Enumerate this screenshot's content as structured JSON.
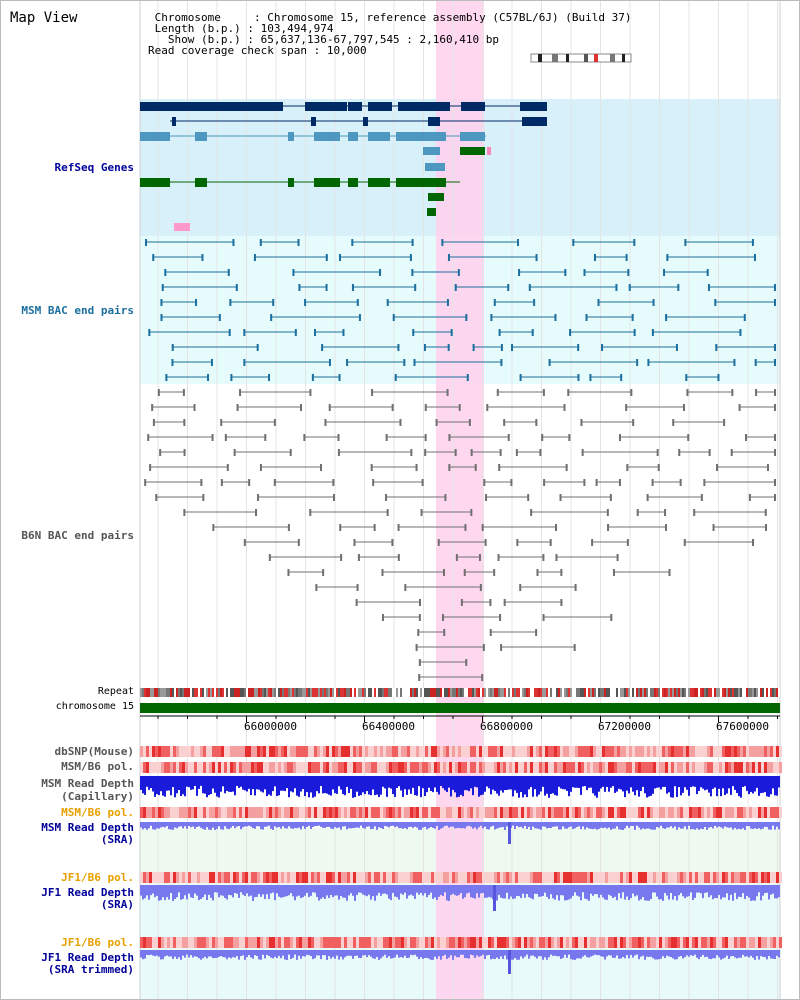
{
  "title": "Map View",
  "header": {
    "chromosome_label": "Chromosome",
    "chromosome_value": "Chromosome 15, reference assembly (C57BL/6J) (Build 37)",
    "length_label": "Length (b.p.)",
    "length_value": "103,494,974",
    "show_label": "Show (b.p.)",
    "show_value": "65,637,136-67,797,545 : 2,160,410 bp",
    "coverage_label": "Read coverage check span",
    "coverage_value": "10,000"
  },
  "tracks": {
    "refseq": "RefSeq Genes",
    "msm_bac": "MSM BAC end pairs",
    "b6n_bac": "B6N BAC end pairs",
    "repeat": "Repeat",
    "chromosome": "chromosome 15"
  },
  "axis_ticks": [
    "66000000",
    "66400000",
    "66800000",
    "67200000",
    "67600000"
  ],
  "lower_tracks": [
    {
      "label": "dbSNP(Mouse)",
      "color": "#555555"
    },
    {
      "label": "MSM/B6 pol.",
      "color": "#555555"
    },
    {
      "label": "MSM Read Depth",
      "color": "#555555"
    },
    {
      "label": "(Capillary)",
      "color": "#555555"
    },
    {
      "label": "MSM/B6 pol.",
      "color": "#e8a000"
    },
    {
      "label": "MSM Read Depth",
      "color": "#000099"
    },
    {
      "label": "(SRA)",
      "color": "#000099"
    },
    {
      "label": "JF1/B6 pol.",
      "color": "#e8a000"
    },
    {
      "label": "JF1 Read Depth",
      "color": "#000099"
    },
    {
      "label": "(SRA)",
      "color": "#000099"
    },
    {
      "label": "JF1/B6 pol.",
      "color": "#e8a000"
    },
    {
      "label": "JF1 Read Depth",
      "color": "#000099"
    },
    {
      "label": "(SRA trimmed)",
      "color": "#000099"
    }
  ],
  "colors": {
    "highlight": "#ffd0ec",
    "refseq_bg": "#d8f0fa",
    "msm_bg": "#e6fbfb",
    "navy": "#002a66",
    "teal": "#4e97c0",
    "green": "#006600",
    "msm_line": "#1c6f9e",
    "b6n_line": "#707070",
    "chromosome": "#006600",
    "read_depth_dark": "#1a1adb",
    "read_depth_light": "#7777ee"
  }
}
